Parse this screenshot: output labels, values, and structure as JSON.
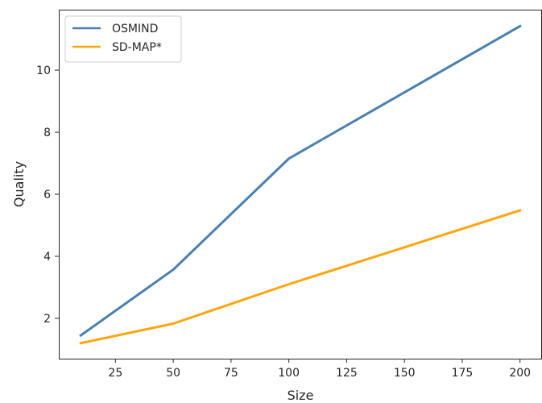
{
  "chart_data": {
    "type": "line",
    "xlabel": "Size",
    "ylabel": "Quality",
    "x": [
      10,
      50,
      100,
      200
    ],
    "series": [
      {
        "name": "OSMIND",
        "color": "#4a7fb0",
        "values": [
          1.45,
          3.57,
          7.15,
          11.42
        ]
      },
      {
        "name": "SD-MAP*",
        "color": "#ffa50f",
        "values": [
          1.2,
          1.83,
          3.1,
          5.48
        ]
      }
    ],
    "xlim": [
      0.5,
      209.5
    ],
    "ylim": [
      0.7,
      11.95
    ],
    "xticks": [
      25,
      50,
      75,
      100,
      125,
      150,
      175,
      200
    ],
    "yticks": [
      2,
      4,
      6,
      8,
      10
    ],
    "grid": false,
    "legend": "top-left"
  }
}
